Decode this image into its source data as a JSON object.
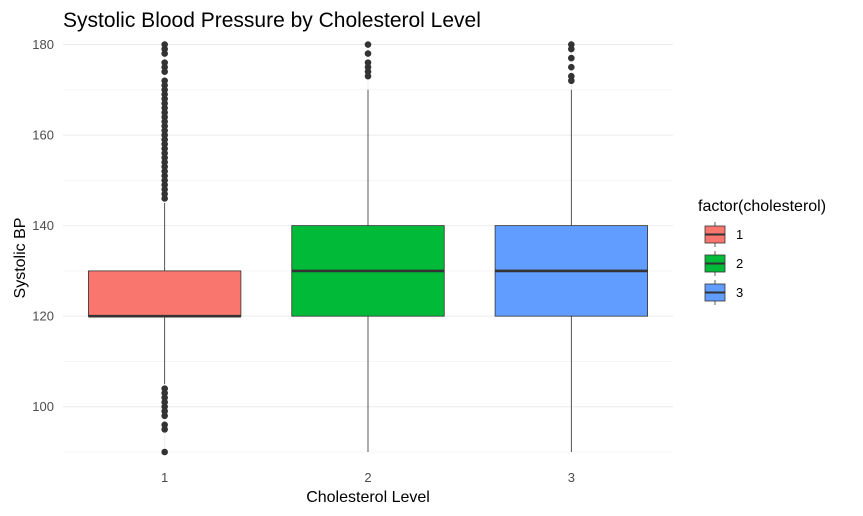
{
  "chart_data": {
    "type": "boxplot",
    "title": "Systolic Blood Pressure by Cholesterol Level",
    "xlabel": "Cholesterol Level",
    "ylabel": "Systolic BP",
    "ylim": [
      90,
      181
    ],
    "yticks": [
      100,
      120,
      140,
      160,
      180
    ],
    "grid": true,
    "legend": {
      "title": "factor(cholesterol)",
      "position": "right"
    },
    "categories": [
      "1",
      "2",
      "3"
    ],
    "series": [
      {
        "name": "1",
        "color": "#F8766D",
        "whisker_low": 105,
        "q1": 120,
        "median": 120,
        "q3": 130,
        "whisker_high": 145,
        "outliers": [
          90,
          95,
          96,
          98,
          99,
          100,
          101,
          102,
          103,
          104,
          146,
          147,
          148,
          149,
          150,
          151,
          152,
          153,
          154,
          155,
          156,
          157,
          158,
          159,
          160,
          161,
          162,
          163,
          164,
          165,
          166,
          167,
          168,
          169,
          170,
          171,
          172,
          174,
          175,
          176,
          178,
          179,
          180
        ]
      },
      {
        "name": "2",
        "color": "#00BA38",
        "whisker_low": 90,
        "q1": 120,
        "median": 130,
        "q3": 140,
        "whisker_high": 170,
        "outliers": [
          173,
          174,
          175,
          176,
          178,
          180
        ]
      },
      {
        "name": "3",
        "color": "#619CFF",
        "whisker_low": 90,
        "q1": 120,
        "median": 130,
        "q3": 140,
        "whisker_high": 170,
        "outliers": [
          172,
          173,
          175,
          177,
          179,
          180
        ]
      }
    ]
  }
}
